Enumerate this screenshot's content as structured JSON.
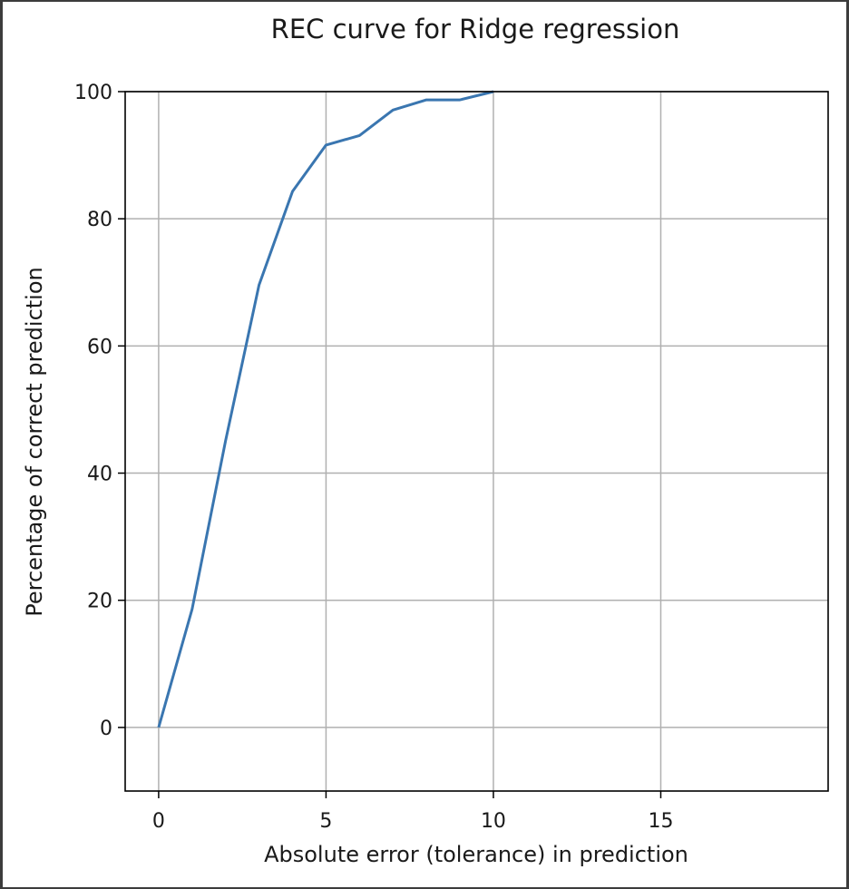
{
  "chart_data": {
    "type": "line",
    "title": "REC curve for Ridge regression",
    "xlabel": "Absolute error (tolerance) in prediction",
    "ylabel": "Percentage of correct prediction",
    "xlim": [
      -1,
      20
    ],
    "ylim": [
      -10,
      100
    ],
    "xticks": [
      0,
      5,
      10,
      15
    ],
    "yticks": [
      0,
      20,
      40,
      60,
      80,
      100
    ],
    "grid": true,
    "line_color": "#3a76b0",
    "series": [
      {
        "x": [
          0,
          1,
          2,
          3,
          4,
          5,
          6,
          7,
          8,
          9,
          10
        ],
        "y": [
          0,
          18.6,
          45.1,
          69.6,
          84.3,
          91.6,
          93.1,
          97.1,
          98.7,
          98.7,
          100
        ]
      }
    ]
  }
}
